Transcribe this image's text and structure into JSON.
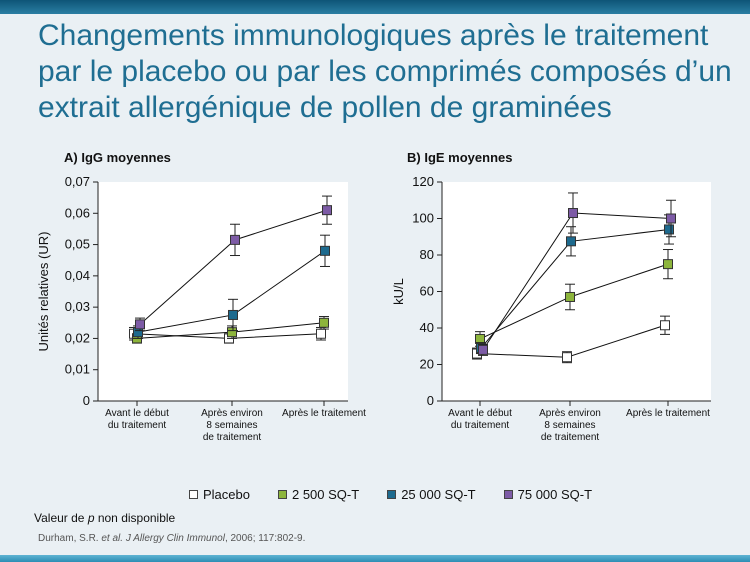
{
  "slide": {
    "title": "Changements immunologiques après le traitement par le placebo ou par les comprimés composés d’un extrait allergénique de pollen de graminées",
    "footnote_prefix": "Valeur de ",
    "footnote_italic": "p",
    "footnote_suffix": " non disponible",
    "citation_author": "Durham, S.R. ",
    "citation_etal": "et al.",
    "citation_journal": " J Allergy Clin Immunol",
    "citation_rest": ", 2006; 117:802-9."
  },
  "legend": [
    {
      "label": "Placebo",
      "color": "#ffffff"
    },
    {
      "label": "2 500 SQ-T",
      "color": "#8db53c"
    },
    {
      "label": "25 000 SQ-T",
      "color": "#1d6a8e"
    },
    {
      "label": "75 000 SQ-T",
      "color": "#7d5ba6"
    }
  ],
  "chart_data": [
    {
      "type": "line",
      "title": "A) IgG moyennes",
      "ylabel": "Unités relatives (UR)",
      "xlabel": "",
      "categories": [
        "Avant le début\ndu traitement",
        "Après environ\n8 semaines\nde traitement",
        "Après le traitement"
      ],
      "ylim": [
        0,
        0.07
      ],
      "yticks": [
        0,
        0.01,
        0.02,
        0.03,
        0.04,
        0.05,
        0.06,
        0.07
      ],
      "ytick_labels": [
        "0",
        "0,01",
        "0,02",
        "0,03",
        "0,04",
        "0,05",
        "0,06",
        "0,07"
      ],
      "series": [
        {
          "name": "Placebo",
          "color": "#ffffff",
          "values": [
            0.0215,
            0.02,
            0.0215
          ],
          "err": [
            0.002,
            0.0015,
            0.002
          ]
        },
        {
          "name": "2 500 SQ-T",
          "color": "#8db53c",
          "values": [
            0.02,
            0.022,
            0.025
          ],
          "err": [
            0.0015,
            0.002,
            0.002
          ]
        },
        {
          "name": "25 000 SQ-T",
          "color": "#1d6a8e",
          "values": [
            0.022,
            0.0275,
            0.048
          ],
          "err": [
            0.002,
            0.005,
            0.005
          ]
        },
        {
          "name": "75 000 SQ-T",
          "color": "#7d5ba6",
          "values": [
            0.0245,
            0.0515,
            0.061
          ],
          "err": [
            0.002,
            0.005,
            0.0045
          ]
        }
      ]
    },
    {
      "type": "line",
      "title": "B) IgE moyennes",
      "ylabel": "kU/L",
      "xlabel": "",
      "categories": [
        "Avant le début\ndu traitement",
        "Après environ\n8 semaines\nde traitement",
        "Après le traitement"
      ],
      "ylim": [
        0,
        120
      ],
      "yticks": [
        0,
        20,
        40,
        60,
        80,
        100,
        120
      ],
      "ytick_labels": [
        "0",
        "20",
        "40",
        "60",
        "80",
        "100",
        "120"
      ],
      "series": [
        {
          "name": "Placebo",
          "color": "#ffffff",
          "values": [
            26,
            24,
            41.5
          ],
          "err": [
            3,
            3,
            5
          ]
        },
        {
          "name": "2 500 SQ-T",
          "color": "#8db53c",
          "values": [
            34,
            57,
            75
          ],
          "err": [
            4,
            7,
            8
          ]
        },
        {
          "name": "25 000 SQ-T",
          "color": "#1d6a8e",
          "values": [
            29,
            87.5,
            94
          ],
          "err": [
            3,
            8,
            8
          ]
        },
        {
          "name": "75 000 SQ-T",
          "color": "#7d5ba6",
          "values": [
            28,
            103,
            100
          ],
          "err": [
            3,
            11,
            10
          ]
        }
      ]
    }
  ]
}
